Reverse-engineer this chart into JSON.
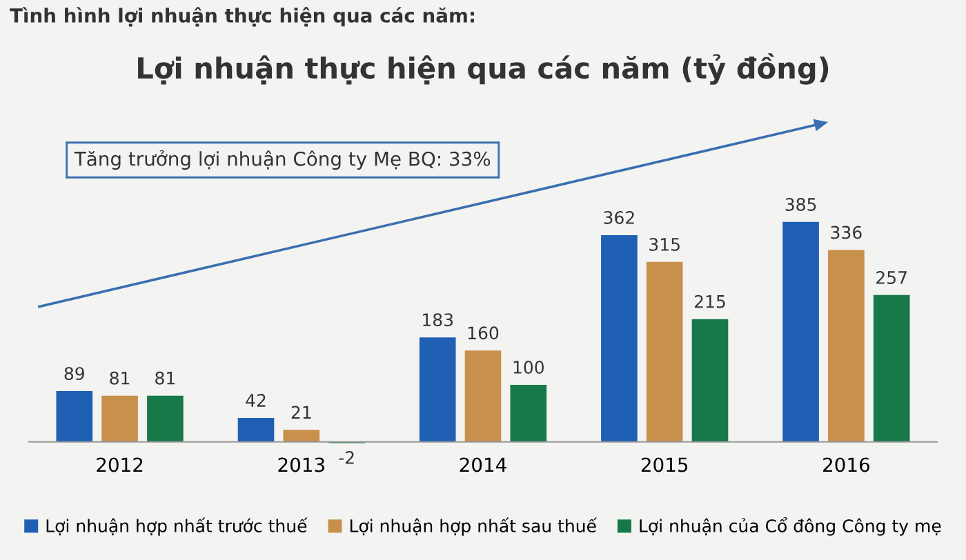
{
  "chart_data": {
    "type": "bar",
    "subtitle": "Tình hình lợi nhuận thực hiện qua các năm:",
    "title": "Lợi nhuận thực hiện qua các năm (tỷ đồng)",
    "categories": [
      "2012",
      "2013",
      "2014",
      "2015",
      "2016"
    ],
    "series": [
      {
        "name": "Lợi nhuận hợp nhất trước thuế",
        "color": "#1f5fb4",
        "values": [
          89,
          42,
          183,
          362,
          385
        ]
      },
      {
        "name": "Lợi nhuận hợp nhất sau thuế",
        "color": "#c98f4c",
        "values": [
          81,
          21,
          160,
          315,
          336
        ]
      },
      {
        "name": "Lợi nhuận của Cổ đông Công ty mẹ",
        "color": "#17794a",
        "values": [
          81,
          -2,
          100,
          215,
          257
        ]
      }
    ],
    "annotations": [
      "Tăng trưởng lợi nhuận Công ty Mẹ BQ: 33%"
    ],
    "data_labels": true,
    "legend": "bottom",
    "grid": false
  }
}
